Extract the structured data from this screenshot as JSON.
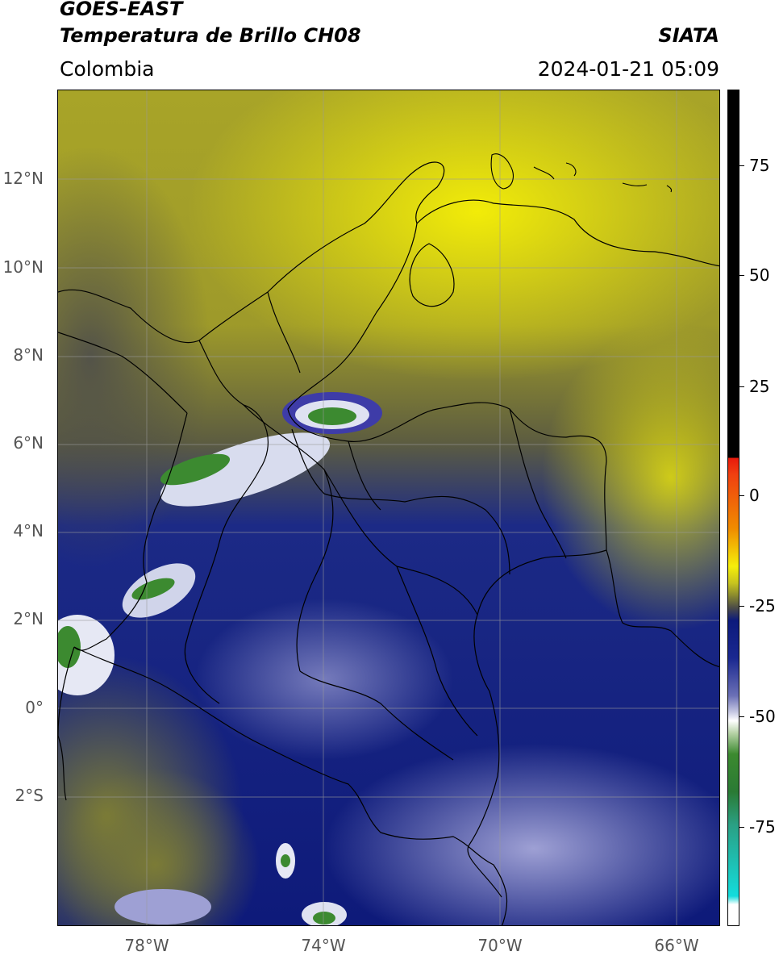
{
  "header": {
    "satellite": "GOES-EAST",
    "product": "Temperatura de Brillo CH08",
    "region": "Colombia",
    "agency": "SIATA",
    "datetime": "2024-01-21 05:09"
  },
  "map": {
    "lat_ticks": [
      "12°N",
      "10°N",
      "8°N",
      "6°N",
      "4°N",
      "2°N",
      "0°",
      "2°S"
    ],
    "lon_ticks": [
      "78°W",
      "74°W",
      "70°W",
      "66°W"
    ],
    "extent": {
      "lon": [
        -80,
        -65
      ],
      "lat": [
        -5,
        14
      ]
    },
    "gridlines": true
  },
  "colorbar": {
    "ticks": [
      "75",
      "50",
      "25",
      "0",
      "-25",
      "-50",
      "-75"
    ],
    "colors": {
      "black": "#000000",
      "red": "#e8180c",
      "orange": "#f08c00",
      "yellow": "#f5ee0a",
      "olive": "#8a8a2e",
      "gray": "#4a4a48",
      "navy": "#0c1a7c",
      "blue": "#6b70b6",
      "white": "#ffffff",
      "green": "#3c8a30",
      "teal": "#2aa084",
      "cyan": "#14dcdc"
    }
  }
}
